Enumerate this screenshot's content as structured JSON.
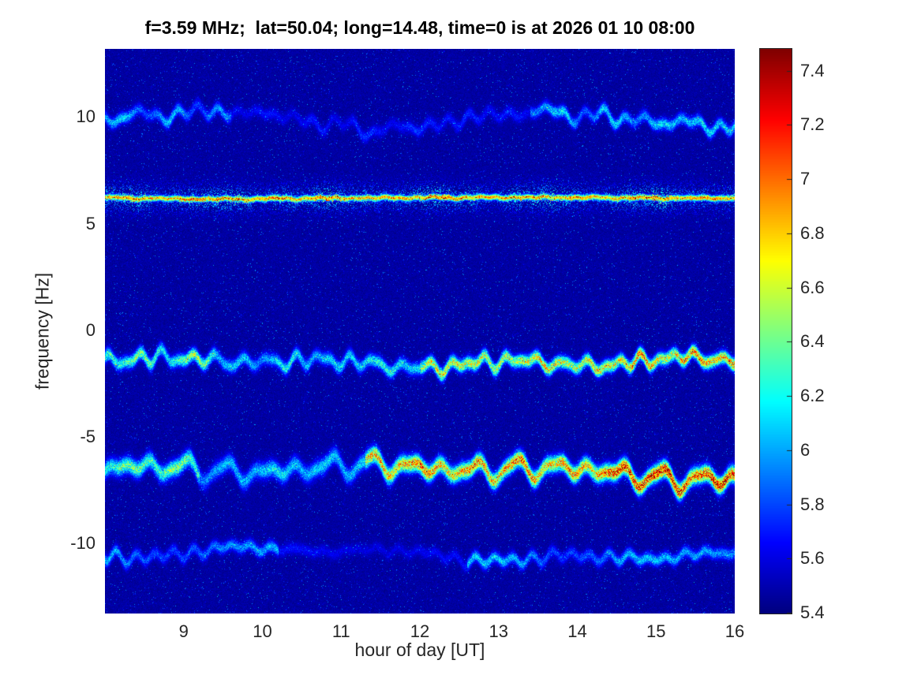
{
  "chart_data": {
    "type": "heatmap",
    "title": "f=3.59 MHz;  lat=50.04; long=14.48, time=0 is at 2026 01 10 08:00",
    "xlabel": "hour of day [UT]",
    "ylabel": "frequency [Hz]",
    "x_ticks": [
      9,
      10,
      11,
      12,
      13,
      14,
      15,
      16
    ],
    "y_ticks": [
      10,
      5,
      0,
      -5,
      -10
    ],
    "colorbar_ticks": [
      5.4,
      5.6,
      5.8,
      6,
      6.2,
      6.4,
      6.6,
      6.8,
      7,
      7.2,
      7.4
    ],
    "xlim": [
      8,
      16
    ],
    "ylim": [
      -13.3,
      13.2
    ],
    "clim": [
      5.4,
      7.48
    ],
    "colormap": "jet",
    "colorbar_position": "right",
    "grid": false,
    "seed": 7,
    "background_noise": {
      "base": 5.42,
      "mottle": 0.1,
      "speckle_prob": 0.045,
      "speckle_max": 0.55
    },
    "bands": [
      {
        "name": "upper-trace",
        "center_hz": 10.0,
        "wiggle_hz": 0.6,
        "sigma_hz": 0.18,
        "peak": [
          5.7,
          6.25
        ],
        "ramp": 0,
        "drift_hz": -0.2,
        "speckle": 0.8,
        "envelope": [
          [
            8,
            9.6,
            0.75
          ],
          [
            9.6,
            13.4,
            0.35
          ],
          [
            13.4,
            16,
            1.0
          ]
        ]
      },
      {
        "name": "carrier-line",
        "center_hz": 6.22,
        "wiggle_hz": 0.08,
        "sigma_hz": 0.09,
        "peak": [
          6.55,
          6.85
        ],
        "ramp": 0,
        "drift_hz": 0,
        "speckle": 0.35,
        "envelope": [
          [
            8,
            16,
            1.0
          ]
        ],
        "halo": {
          "sigma_hz": 0.45,
          "peak": [
            5.7,
            6.3
          ],
          "density": 0.25
        }
      },
      {
        "name": "mid-trace",
        "center_hz": -1.5,
        "wiggle_hz": 0.55,
        "sigma_hz": 0.2,
        "peak": [
          5.95,
          6.45
        ],
        "ramp": 0.5,
        "drift_hz": 0,
        "speckle": 0.8,
        "envelope": [
          [
            8,
            9.4,
            0.95
          ],
          [
            9.4,
            12,
            0.65
          ],
          [
            12,
            16,
            1.0
          ]
        ]
      },
      {
        "name": "lower-trace",
        "center_hz": -6.35,
        "wiggle_hz": 0.7,
        "sigma_hz": 0.26,
        "peak": [
          6.0,
          6.55
        ],
        "ramp": 0.75,
        "drift_hz": -0.5,
        "speckle": 0.75,
        "envelope": [
          [
            8,
            9.2,
            0.9
          ],
          [
            9.2,
            11.3,
            0.55
          ],
          [
            11.3,
            16,
            1.0
          ]
        ]
      },
      {
        "name": "bottom-trace",
        "center_hz": -10.35,
        "wiggle_hz": 0.45,
        "sigma_hz": 0.18,
        "peak": [
          5.7,
          6.2
        ],
        "ramp": 0,
        "drift_hz": -0.3,
        "speckle": 0.8,
        "envelope": [
          [
            8,
            10.2,
            0.8
          ],
          [
            10.2,
            12.6,
            0.3
          ],
          [
            12.6,
            16,
            0.85
          ]
        ]
      }
    ]
  }
}
